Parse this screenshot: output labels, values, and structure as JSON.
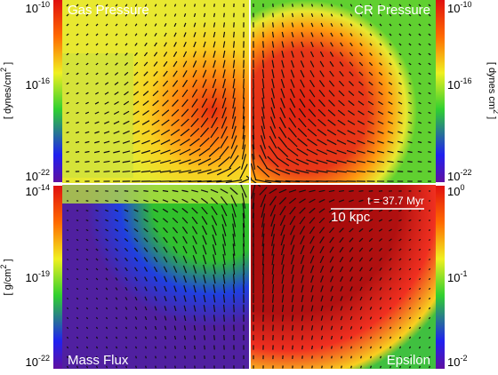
{
  "panels": [
    {
      "label": "Gas Pressure"
    },
    {
      "label": "CR Pressure"
    },
    {
      "label": "Mass Flux"
    },
    {
      "label": "Epsilon"
    }
  ],
  "annotation": {
    "time": "t = 37.7 Myr",
    "scale": "10 kpc"
  },
  "colorbars": [
    {
      "unit": {
        "text": "[ dynes/cm",
        "sup": "2",
        "end": " ]"
      },
      "ticks": [
        {
          "base": "10",
          "exp": "-10"
        },
        {
          "base": "10",
          "exp": "-16"
        },
        {
          "base": "10",
          "exp": "-22"
        }
      ]
    },
    {
      "unit": {
        "text": "[ dynes cm",
        "sup": "2",
        "end": " ]"
      },
      "ticks": [
        {
          "base": "10",
          "exp": "-10"
        },
        {
          "base": "10",
          "exp": "-16"
        },
        {
          "base": "10",
          "exp": "-22"
        }
      ]
    },
    {
      "unit": {
        "text": "[ g/cm",
        "sup": "2",
        "end": " ]"
      },
      "ticks": [
        {
          "base": "10",
          "exp": "-14"
        },
        {
          "base": "10",
          "exp": "-19"
        },
        {
          "base": "10",
          "exp": "-22"
        }
      ]
    },
    {
      "ticks": [
        {
          "base": "10",
          "exp": "0"
        },
        {
          "base": "10",
          "exp": "-1"
        },
        {
          "base": "10",
          "exp": "-2"
        }
      ]
    }
  ]
}
